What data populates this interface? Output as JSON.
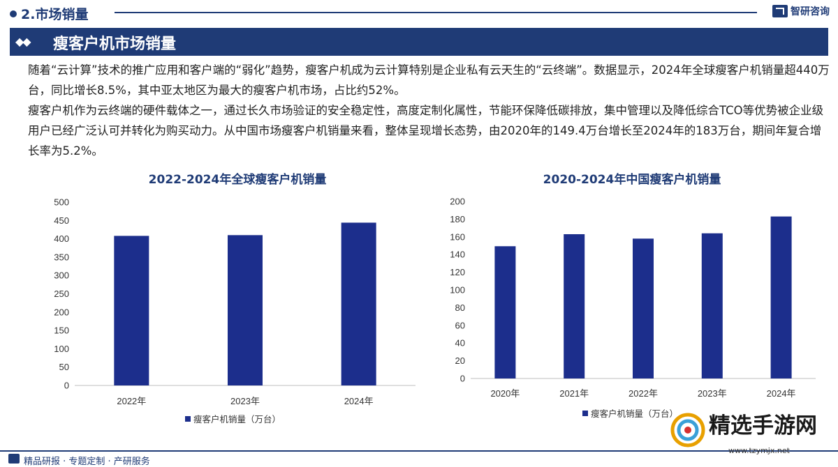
{
  "header": {
    "section": "2.市场销量",
    "brand": "智研咨询",
    "title": "瘦客户机市场销量"
  },
  "paragraphs": [
    "随着“云计算”技术的推广应用和客户端的“弱化”趋势，瘦客户机成为云计算特别是企业私有云天生的“云终端”。数据显示，2024年全球瘦客户机销量超440万台，同比增长8.5%，其中亚太地区为最大的瘦客户机市场，占比约52%。",
    "瘦客户机作为云终端的硬件载体之一，通过长久市场验证的安全稳定性，高度定制化属性，节能环保降低碳排放，集中管理以及降低综合TCO等优势被企业级用户已经广泛认可并转化为购买动力。从中国市场瘦客户机销量来看，整体呈现增长态势，由2020年的149.4万台增长至2024年的183万台，期间年复合增长率为5.2%。"
  ],
  "chart_data": [
    {
      "type": "bar",
      "title": "2022-2024年全球瘦客户机销量",
      "categories": [
        "2022年",
        "2023年",
        "2024年"
      ],
      "series": [
        {
          "name": "瘦客户机销量（万台）",
          "values": [
            408,
            410,
            444
          ]
        }
      ],
      "ylim": [
        0,
        500
      ],
      "yticks": [
        0,
        50,
        100,
        150,
        200,
        250,
        300,
        350,
        400,
        450,
        500
      ],
      "color": "#1c2e8c",
      "legend": "bottom"
    },
    {
      "type": "bar",
      "title": "2020-2024年中国瘦客户机销量",
      "categories": [
        "2020年",
        "2021年",
        "2022年",
        "2023年",
        "2024年"
      ],
      "series": [
        {
          "name": "瘦客户机销量（万台）",
          "values": [
            149.4,
            163,
            158,
            164,
            183
          ]
        }
      ],
      "ylim": [
        0,
        200
      ],
      "yticks": [
        0,
        20,
        40,
        60,
        80,
        100,
        120,
        140,
        160,
        180,
        200
      ],
      "color": "#1c2e8c",
      "legend": "bottom"
    }
  ],
  "footer": {
    "text": "精品研报 · 专题定制 · 产研服务"
  },
  "watermark": {
    "text": "精选手游网",
    "url": "www.tzymjx.net"
  }
}
